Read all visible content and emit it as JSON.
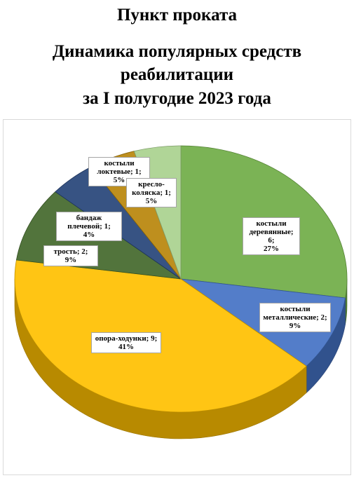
{
  "titles": {
    "line1": "Пункт проката",
    "line2": "Динамика популярных средств",
    "line3": "реабилитации",
    "line4": "за I полугодие 2023 года"
  },
  "chart_data": {
    "type": "pie",
    "title": "Пункт проката Динамика популярных средств реабилитации за I полугодие 2023 года",
    "slices": [
      {
        "name": "костыли деревянные",
        "value": 6,
        "percent": "27%",
        "label": "костыли деревянные; 6;",
        "color": "#70ad47"
      },
      {
        "name": "костыли металлические",
        "value": 2,
        "percent": "9%",
        "label": "костыли металлические; 2;",
        "color": "#4472c4"
      },
      {
        "name": "опора-ходунки",
        "value": 9,
        "percent": "41%",
        "label": "опора-ходунки; 9;",
        "color": "#ffc000"
      },
      {
        "name": "трость",
        "value": 2,
        "percent": "9%",
        "label": "трость; 2;",
        "color": "#43682b"
      },
      {
        "name": "бандаж плечевой",
        "value": 1,
        "percent": "4%",
        "label": "бандаж плечевой; 1;",
        "color": "#264478"
      },
      {
        "name": "костыли локтевые",
        "value": 1,
        "percent": "5%",
        "label": "костыли локтевые; 1;",
        "color": "#b8860b"
      },
      {
        "name": "кресло-коляска",
        "value": 1,
        "percent": "5%",
        "label": "кресло-коляска; 1;",
        "color": "#a9d18e"
      }
    ]
  }
}
